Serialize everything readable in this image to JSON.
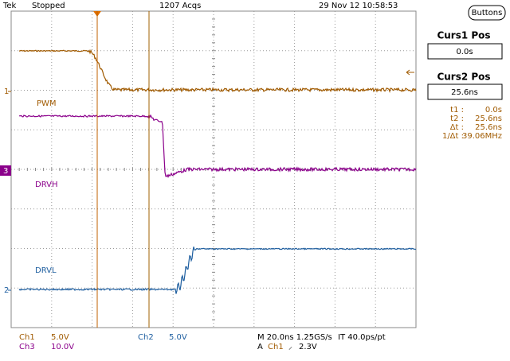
{
  "header": {
    "brand": "Tek",
    "status": "Stopped",
    "acquisitions": "1207 Acqs",
    "timestamp": "29 Nov 12 10:58:53",
    "button": "Buttons"
  },
  "side_panel": {
    "cursor1_title": "Curs1 Pos",
    "cursor1_value": "0.0s",
    "cursor2_title": "Curs2 Pos",
    "cursor2_value": "25.6ns",
    "readouts": [
      {
        "label": "t1 :",
        "value": "0.0s"
      },
      {
        "label": "t2 :",
        "value": "25.6ns"
      },
      {
        "label": "Δt :",
        "value": "25.6ns"
      },
      {
        "label": "1/Δt :",
        "value": "39.06MHz"
      }
    ]
  },
  "traces": [
    {
      "marker": "1",
      "label": "PWM"
    },
    {
      "marker": "3",
      "label": "DRVH"
    },
    {
      "marker": "2",
      "label": "DRVL"
    }
  ],
  "footer": {
    "channels": [
      {
        "name": "Ch1",
        "scale": "5.0V"
      },
      {
        "name": "Ch3",
        "scale": "10.0V"
      },
      {
        "name": "Ch2",
        "scale": "5.0V"
      }
    ],
    "timebase": "M 20.0ns 1.25GS/s",
    "interpolation": "IT 40.0ps/pt",
    "trigger": {
      "mode": "A",
      "source": "Ch1",
      "slope": "⸝",
      "level": "2.3V"
    }
  }
}
